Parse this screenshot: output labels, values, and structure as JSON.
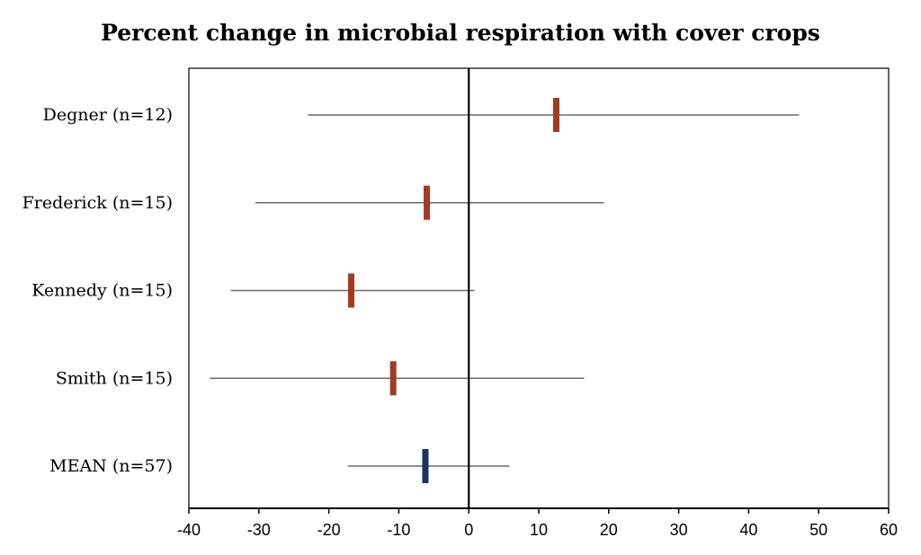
{
  "chart_data": {
    "type": "forest",
    "title": "Percent change in microbial respiration with cover crops",
    "xlabel": "",
    "ylabel": "",
    "xlim": [
      -40,
      60
    ],
    "xticks": [
      -40,
      -30,
      -20,
      -10,
      0,
      10,
      20,
      30,
      40,
      50,
      60
    ],
    "grid": false,
    "legend": "none",
    "reference_line": 0,
    "studies": [
      {
        "label": "Degner (n=12)",
        "estimate": 12.5,
        "ci_low": -23.0,
        "ci_high": 47.2,
        "color": "#a23b22"
      },
      {
        "label": "Frederick (n=15)",
        "estimate": -6.0,
        "ci_low": -30.5,
        "ci_high": 19.3,
        "color": "#a23b22"
      },
      {
        "label": "Kennedy (n=15)",
        "estimate": -16.8,
        "ci_low": -34.0,
        "ci_high": 0.8,
        "color": "#a23b22"
      },
      {
        "label": "Smith (n=15)",
        "estimate": -10.8,
        "ci_low": -37.0,
        "ci_high": 16.5,
        "color": "#a23b22"
      },
      {
        "label": "MEAN (n=57)",
        "estimate": -6.2,
        "ci_low": -17.3,
        "ci_high": 5.8,
        "color": "#17365d"
      }
    ]
  }
}
